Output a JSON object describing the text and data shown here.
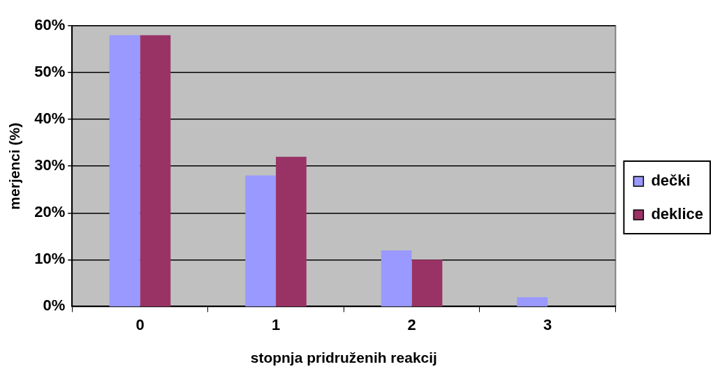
{
  "chart_data": {
    "type": "bar",
    "xlabel": "stopnja pridruženih reakcij",
    "ylabel": "merjenci (%)",
    "categories": [
      "0",
      "1",
      "2",
      "3"
    ],
    "series": [
      {
        "name": "dečki",
        "color": "#9999ff",
        "values": [
          58,
          28,
          12,
          2
        ]
      },
      {
        "name": "deklice",
        "color": "#993366",
        "values": [
          58,
          32,
          10,
          0
        ]
      }
    ],
    "ylim": [
      0,
      60
    ],
    "yticks": [
      {
        "value": 0,
        "label": "0%"
      },
      {
        "value": 10,
        "label": "10%"
      },
      {
        "value": 20,
        "label": "20%"
      },
      {
        "value": 30,
        "label": "30%"
      },
      {
        "value": 40,
        "label": "40%"
      },
      {
        "value": 50,
        "label": "50%"
      },
      {
        "value": 60,
        "label": "60%"
      }
    ],
    "grid": "y",
    "legend": "right"
  }
}
